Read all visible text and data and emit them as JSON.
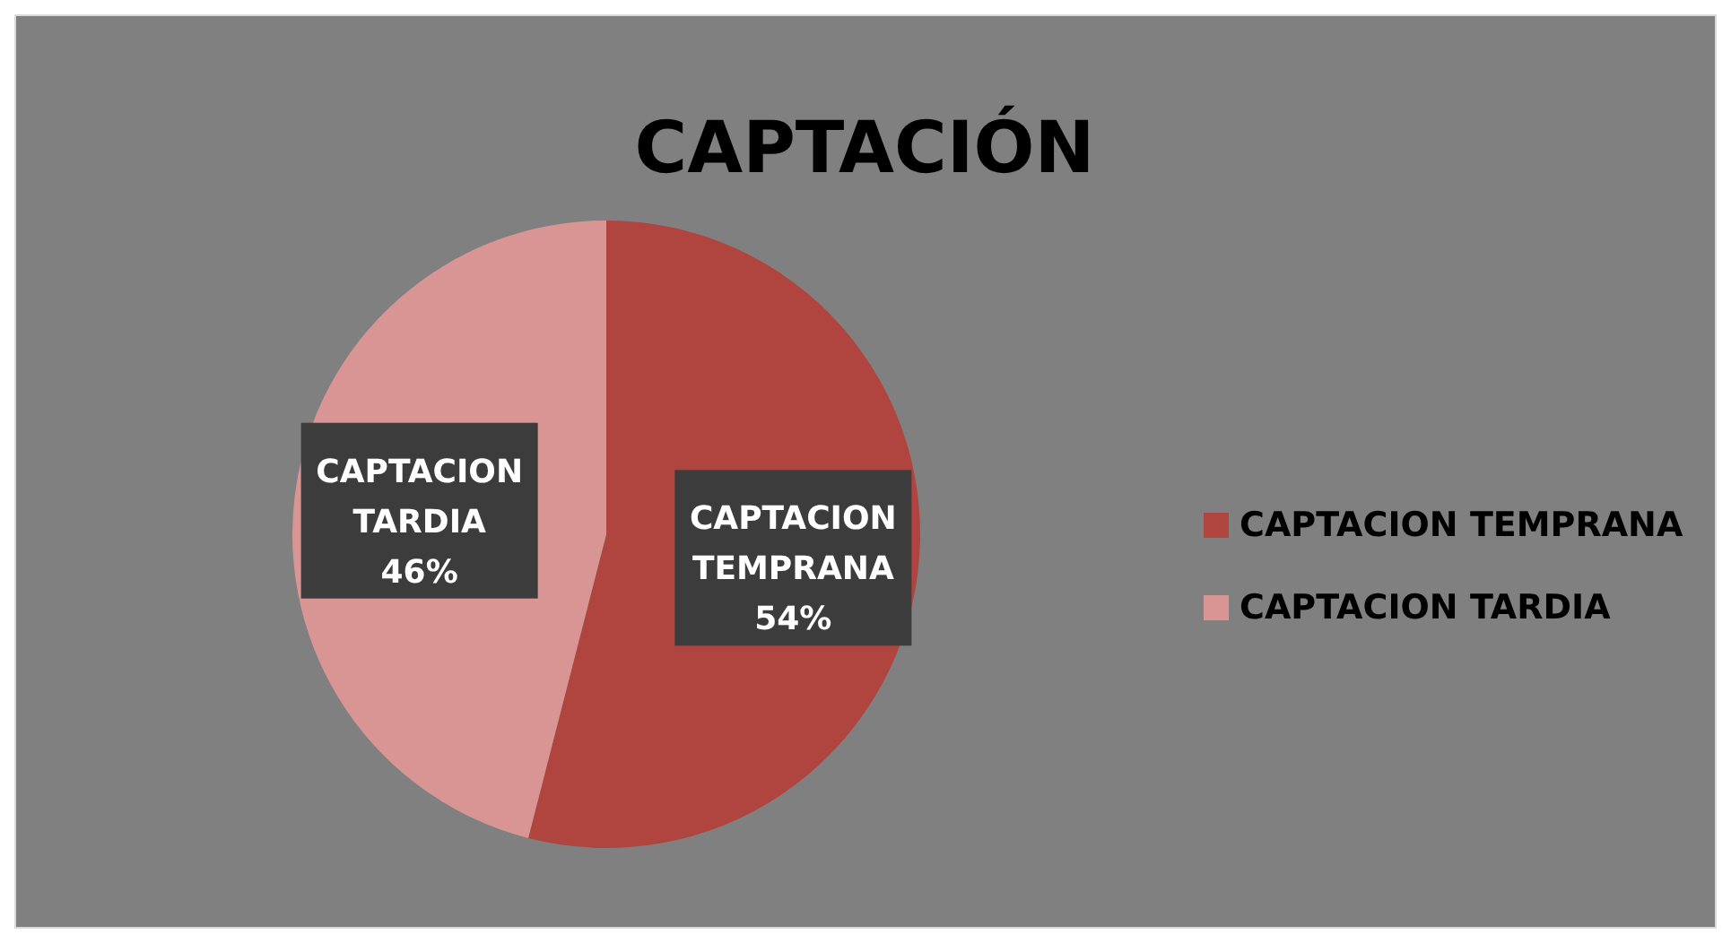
{
  "chart_data": {
    "type": "pie",
    "title": "CAPTACIÓN",
    "categories": [
      "CAPTACION TEMPRANA",
      "CAPTACION TARDIA"
    ],
    "values": [
      54,
      46
    ],
    "colors": [
      "#b0443f",
      "#d99594"
    ],
    "value_labels": [
      "54%",
      "46%"
    ],
    "legend": "right"
  }
}
